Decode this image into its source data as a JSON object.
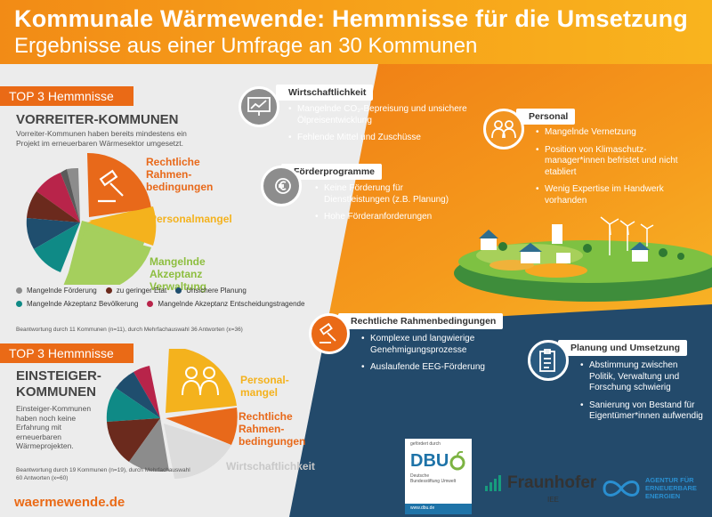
{
  "header": {
    "title": "Kommunale Wärmewende: Hemmnisse für die Umsetzung",
    "subtitle": "Ergebnisse aus einer Umfrage an 30 Kommunen"
  },
  "vorreiter": {
    "tag": "TOP 3 Hemmnisse",
    "title": "VORREITER-KOMMUNEN",
    "description": "Vorreiter-Kommunen haben bereits mindestens ein Projekt im erneuerbaren Wärmesektor umgesetzt.",
    "labels": [
      "Rechtliche Rahmen-bedingungen",
      "Personalmangel",
      "Mangelnde Akzeptanz Verwaltung"
    ],
    "footnote": "Beantwortung durch 11 Kommunen (n=11), durch Mehrfachauswahl 36 Antworten (x=36)"
  },
  "legend": [
    {
      "label": "Mangelnde Förderung",
      "color": "#8c8c8c"
    },
    {
      "label": "zu geringer Etat",
      "color": "#6b2a1d"
    },
    {
      "label": "Unsichere Planung",
      "color": "#1f4e6e"
    },
    {
      "label": "Mangelnde Akzeptanz Bevölkerung",
      "color": "#0f8a86"
    },
    {
      "label": "Mangelnde Akzeptanz Entscheidungstragende",
      "color": "#b8244a"
    }
  ],
  "einsteiger": {
    "tag": "TOP 3 Hemmnisse",
    "title_line1": "EINSTEIGER-",
    "title_line2": "KOMMUNEN",
    "description": "Einsteiger-Kommunen haben noch keine Erfahrung mit erneuerbaren Wärmeprojekten.",
    "labels": [
      "Personal-mangel",
      "Rechtliche Rahmen-bedingungen",
      "Wirtschaftlichkeit"
    ],
    "footnote": "Beantwortung durch 19 Kommunen (n=19), durch Mehrfachauswahl 60 Antworten (x=60)"
  },
  "cards": {
    "wirtschaft": {
      "title": "Wirtschaftlichkeit",
      "items": [
        "Mangelnde CO₂-Bepreisung und unsichere Ölpreisentwicklung",
        "Fehlende Mittel und Zuschüsse"
      ]
    },
    "foerder": {
      "title": "Förderprogramme",
      "items": [
        "Keine Förderung für Dienstleistungen (z.B. Planung)",
        "Hohe Förderanforderungen"
      ]
    },
    "personal": {
      "title": "Personal",
      "items": [
        "Mangelnde Vernetzung",
        "Position von Klimaschutz-manager*innen befristet und nicht etabliert",
        "Wenig Expertise im Handwerk vorhanden"
      ]
    },
    "recht": {
      "title": "Rechtliche Rahmenbedingungen",
      "items": [
        "Komplexe und langwierige Genehmigungsprozesse",
        "Auslaufende EEG-Förderung"
      ]
    },
    "planung": {
      "title": "Planung und Umsetzung",
      "items": [
        "Abstimmung zwischen Politik, Verwaltung und Forschung schwierig",
        "Sanierung von Bestand für Eigentümer*innen aufwendig"
      ]
    }
  },
  "footer": {
    "url": "waermewende.de",
    "dbu_funded": "gefördert durch",
    "dbu_name": "DBU",
    "dbu_sub1": "Deutsche",
    "dbu_sub2": "Bundesstiftung Umwelt",
    "dbu_web": "www.dbu.de",
    "fraunhofer": "Fraunhofer",
    "fraunhofer_sub": "IEE",
    "aee1": "AGENTUR FÜR",
    "aee2": "ERNEUERBARE",
    "aee3": "ENERGIEN"
  }
}
